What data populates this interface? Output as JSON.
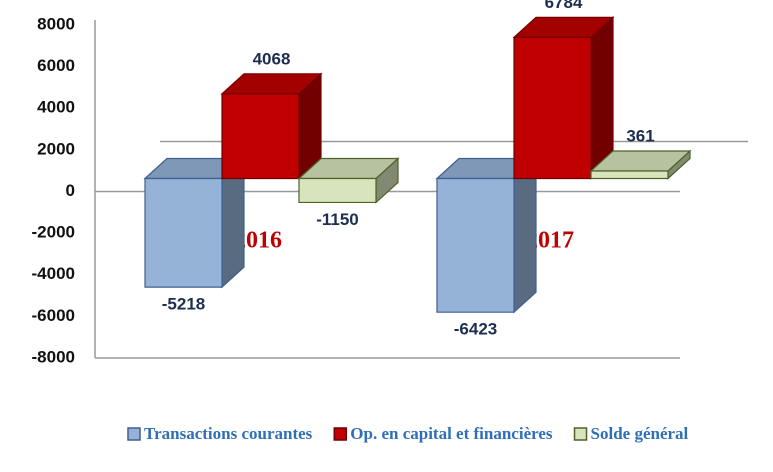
{
  "chart_data": {
    "type": "bar3d",
    "categories": [
      "08 mois 2016",
      "08 mois 2017"
    ],
    "series": [
      {
        "name": "Transactions courantes",
        "color": "#95b3d7",
        "values": [
          -5218,
          -6423
        ]
      },
      {
        "name": "Op. en capital et financières",
        "color": "#c00000",
        "values": [
          4068,
          6784
        ]
      },
      {
        "name": "Solde général",
        "color": "#d7e4bd",
        "values": [
          -1150,
          361
        ]
      }
    ],
    "ylim": [
      -8000,
      8000
    ],
    "yticks": [
      -8000,
      -6000,
      -4000,
      -2000,
      0,
      2000,
      4000,
      6000,
      8000
    ],
    "legend": "bottom"
  }
}
